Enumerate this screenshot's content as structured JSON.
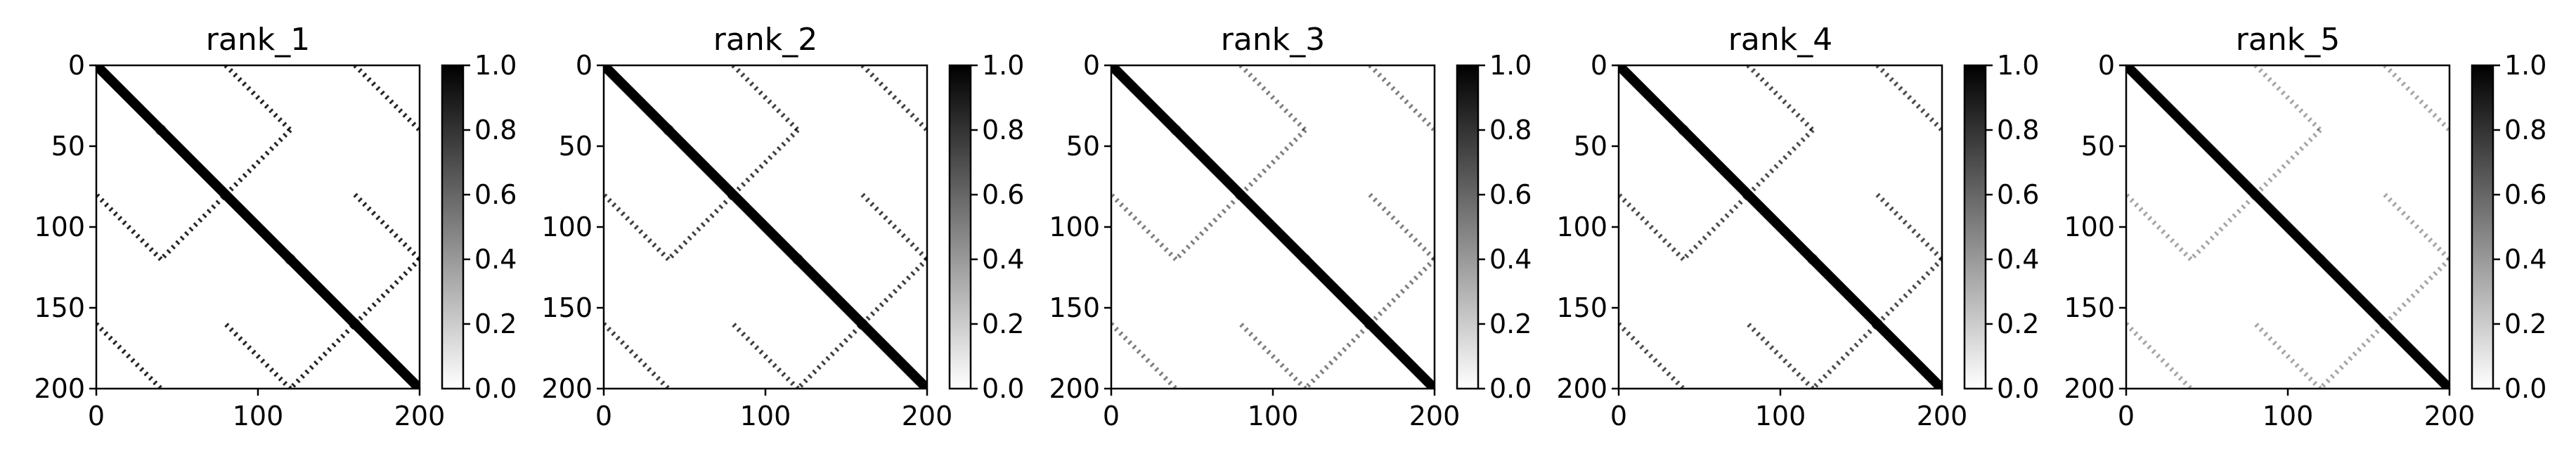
{
  "chart_data": [
    {
      "type": "heatmap",
      "title": "rank_1",
      "x_ticks": [
        "0",
        "100",
        "200"
      ],
      "y_ticks": [
        "0",
        "50",
        "100",
        "150",
        "200"
      ],
      "xlim": [
        0,
        200
      ],
      "ylim": [
        200,
        0
      ],
      "cmap": "Greys",
      "colorbar": {
        "ticks": [
          "0.0",
          "0.2",
          "0.4",
          "0.6",
          "0.8",
          "1.0"
        ],
        "range": [
          0.0,
          1.0
        ]
      },
      "intensity": {
        "diagonal": 1.0,
        "off_diagonal_pattern": 0.85,
        "background": 0.0
      }
    },
    {
      "type": "heatmap",
      "title": "rank_2",
      "x_ticks": [
        "0",
        "100",
        "200"
      ],
      "y_ticks": [
        "0",
        "50",
        "100",
        "150",
        "200"
      ],
      "xlim": [
        0,
        200
      ],
      "ylim": [
        200,
        0
      ],
      "cmap": "Greys",
      "colorbar": {
        "ticks": [
          "0.0",
          "0.2",
          "0.4",
          "0.6",
          "0.8",
          "1.0"
        ],
        "range": [
          0.0,
          1.0
        ]
      },
      "intensity": {
        "diagonal": 1.0,
        "off_diagonal_pattern": 0.75,
        "background": 0.0
      }
    },
    {
      "type": "heatmap",
      "title": "rank_3",
      "x_ticks": [
        "0",
        "100",
        "200"
      ],
      "y_ticks": [
        "0",
        "50",
        "100",
        "150",
        "200"
      ],
      "xlim": [
        0,
        200
      ],
      "ylim": [
        200,
        0
      ],
      "cmap": "Greys",
      "colorbar": {
        "ticks": [
          "0.0",
          "0.2",
          "0.4",
          "0.6",
          "0.8",
          "1.0"
        ],
        "range": [
          0.0,
          1.0
        ]
      },
      "intensity": {
        "diagonal": 1.0,
        "off_diagonal_pattern": 0.5,
        "background": 0.0
      }
    },
    {
      "type": "heatmap",
      "title": "rank_4",
      "x_ticks": [
        "0",
        "100",
        "200"
      ],
      "y_ticks": [
        "0",
        "50",
        "100",
        "150",
        "200"
      ],
      "xlim": [
        0,
        200
      ],
      "ylim": [
        200,
        0
      ],
      "cmap": "Greys",
      "colorbar": {
        "ticks": [
          "0.0",
          "0.2",
          "0.4",
          "0.6",
          "0.8",
          "1.0"
        ],
        "range": [
          0.0,
          1.0
        ]
      },
      "intensity": {
        "diagonal": 1.0,
        "off_diagonal_pattern": 0.7,
        "background": 0.0
      }
    },
    {
      "type": "heatmap",
      "title": "rank_5",
      "x_ticks": [
        "0",
        "100",
        "200"
      ],
      "y_ticks": [
        "0",
        "50",
        "100",
        "150",
        "200"
      ],
      "xlim": [
        0,
        200
      ],
      "ylim": [
        200,
        0
      ],
      "cmap": "Greys",
      "colorbar": {
        "ticks": [
          "0.0",
          "0.2",
          "0.4",
          "0.6",
          "0.8",
          "1.0"
        ],
        "range": [
          0.0,
          1.0
        ]
      },
      "intensity": {
        "diagonal": 1.0,
        "off_diagonal_pattern": 0.35,
        "background": 0.0
      }
    }
  ]
}
